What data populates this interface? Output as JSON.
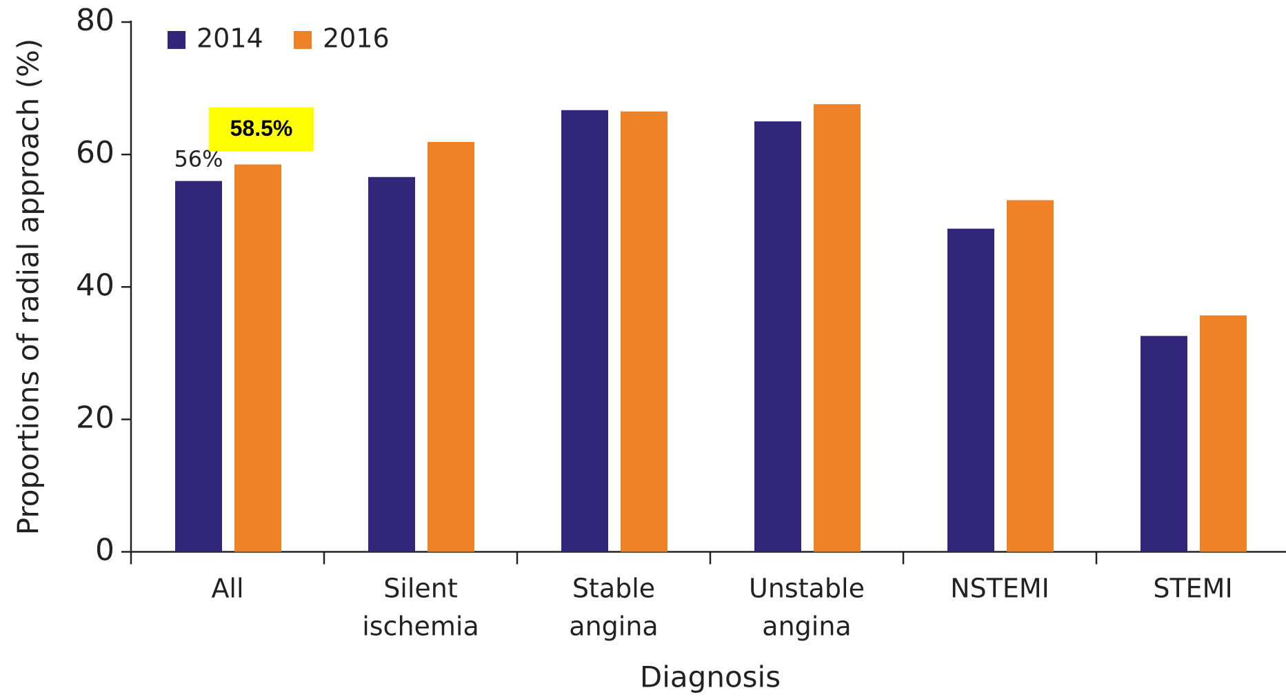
{
  "chart_data": {
    "type": "bar",
    "x_label": "Diagnosis",
    "y_label": "Proportions of radial approach (%)",
    "categories": [
      "All",
      "Silent ischemia",
      "Stable angina",
      "Unstable angina",
      "NSTEMI",
      "STEMI"
    ],
    "series": [
      {
        "name": "2014",
        "color": "#31267a",
        "values": [
          56,
          56.6,
          66.7,
          65.0,
          48.8,
          32.6
        ],
        "value_labels": [
          "56%",
          null,
          null,
          null,
          null,
          null
        ]
      },
      {
        "name": "2016",
        "color": "#ef8226",
        "values": [
          58.5,
          61.9,
          66.5,
          67.6,
          53.1,
          35.7
        ],
        "value_labels": [
          "58.5%",
          null,
          null,
          null,
          null,
          null
        ]
      }
    ],
    "ylim": [
      0,
      80
    ],
    "yticks": [
      0,
      20,
      40,
      60,
      80
    ],
    "legend": "top-left",
    "highlight_color": "#ffff00"
  }
}
